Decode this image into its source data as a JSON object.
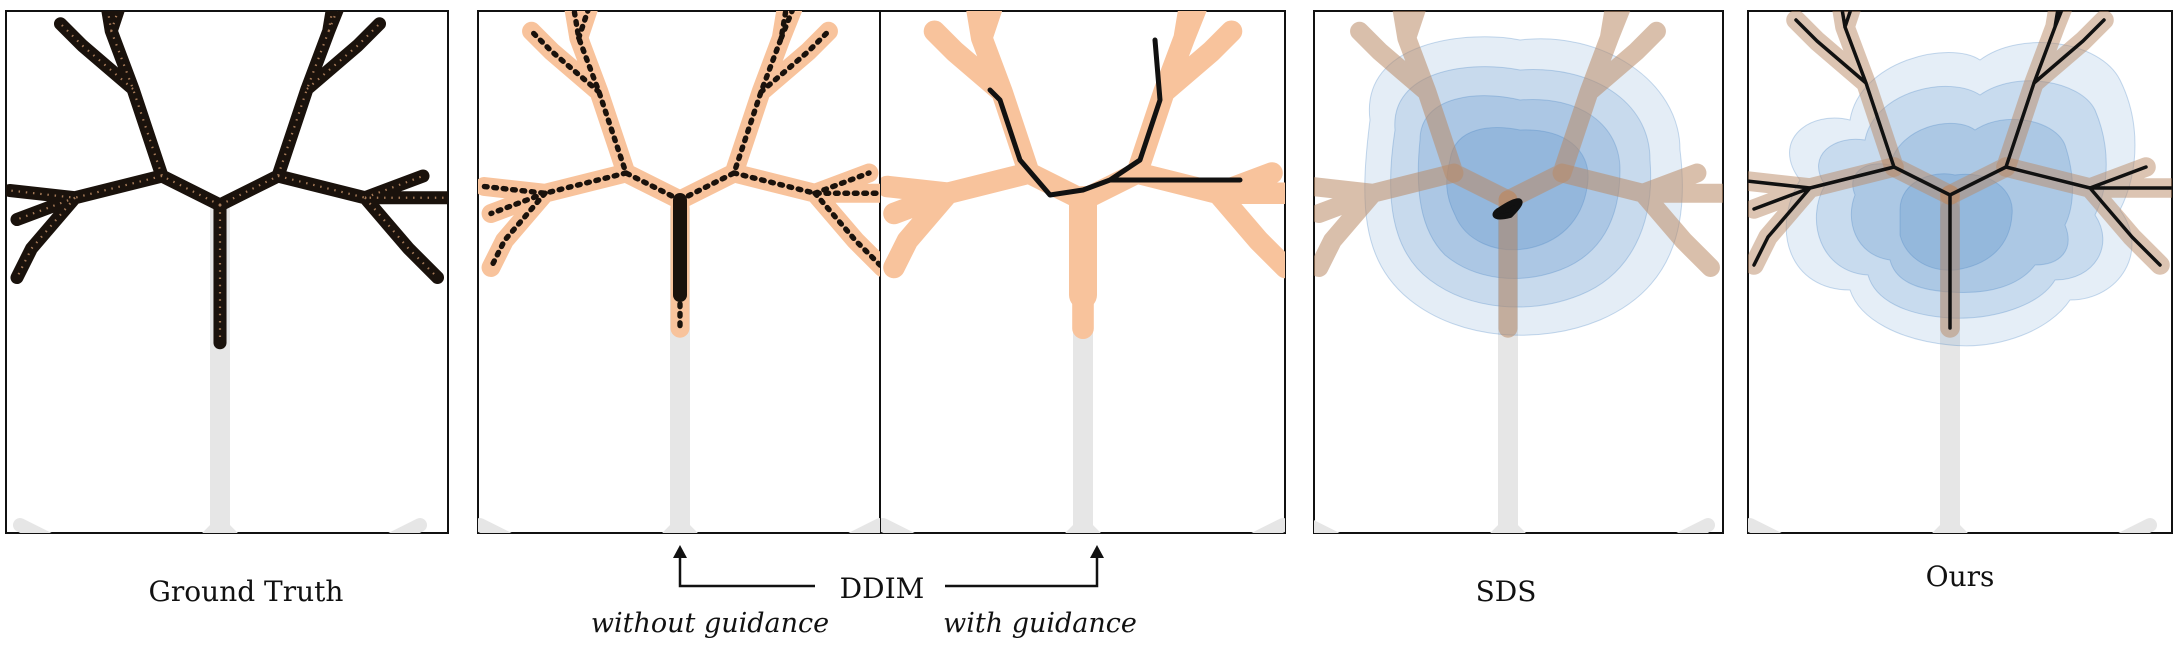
{
  "panels": [
    {
      "id": "gt",
      "label": "Ground Truth",
      "fill": "black"
    },
    {
      "id": "ddim-no-guidance",
      "label": "",
      "fill": "orange-dots"
    },
    {
      "id": "ddim-guidance",
      "label": "",
      "fill": "orange-branch"
    },
    {
      "id": "sds",
      "label": "SDS",
      "fill": "blue-contour"
    },
    {
      "id": "ours",
      "label": "Ours",
      "fill": "blue-contour"
    }
  ],
  "ddim": {
    "label": "DDIM",
    "without_guidance": "without guidance",
    "with_guidance": "with guidance"
  },
  "colors": {
    "tree_gray": "#e6e6e6",
    "sample_black": "#111111",
    "orange": "#f8c39c",
    "blue": "#4a86c5"
  }
}
